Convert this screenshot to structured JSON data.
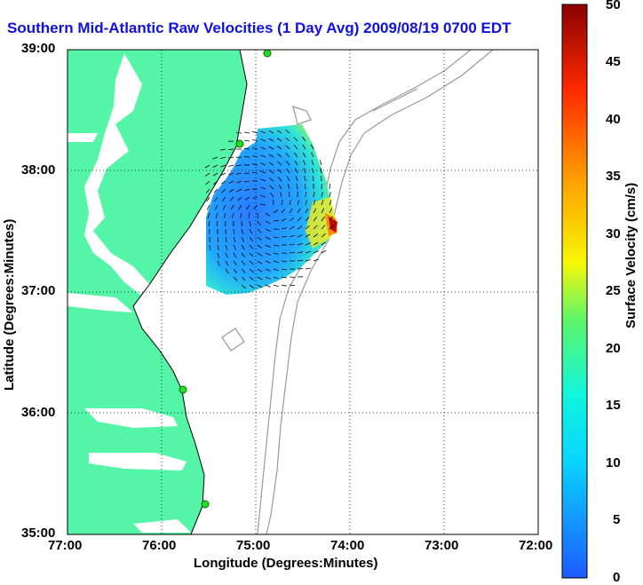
{
  "title": "Southern Mid-Atlantic Raw Velocities (1 Day Avg) 2009/08/19 0700 EDT",
  "xlabel": "Longitude (Degrees:Minutes)",
  "ylabel": "Latitude (Degrees:Minutes)",
  "x_ticks": [
    "77:00",
    "76:00",
    "75:00",
    "74:00",
    "73:00",
    "72:00"
  ],
  "y_ticks": [
    "39:00",
    "38:00",
    "37:00",
    "36:00",
    "35:00"
  ],
  "colorbar": {
    "label": "Surface Velocity (cm/s)",
    "ticks": [
      "50",
      "45",
      "40",
      "35",
      "30",
      "25",
      "20",
      "15",
      "10",
      "5",
      "0"
    ],
    "range": [
      0,
      50
    ]
  },
  "colors": {
    "land": "#55f5a8",
    "title": "#1010e0",
    "contour": "#999999",
    "station": "#22dd22"
  }
}
